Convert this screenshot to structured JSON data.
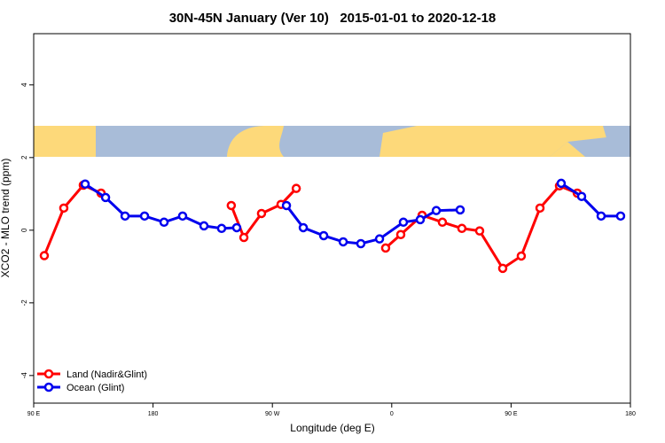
{
  "chart_data": {
    "type": "line",
    "title": "30N-45N January (Ver 10)   2015-01-01 to 2020-12-18",
    "x_label": "Longitude (deg E)",
    "y_label": "XCO2 - MLO trend (ppm)",
    "xlim": [
      90,
      540
    ],
    "xticks": [
      {
        "value": 90,
        "label": "90 E"
      },
      180,
      {
        "value": 270,
        "label": "90 W"
      },
      {
        "value": 360,
        "label": "0"
      },
      {
        "value": 450,
        "label": "90 E"
      },
      {
        "value": 540,
        "label": "180"
      }
    ],
    "ylim": [
      -4.76,
      5.41
    ],
    "yticks": [
      -4,
      -2,
      0,
      2,
      4
    ],
    "legend": "bottom-left",
    "series": [
      {
        "name": "Land (Nadir&Glint)",
        "color": "#ff0000",
        "x": [
          98,
          112.7,
          127.4,
          140.8,
          null,
          239,
          248.5,
          261.8,
          276.5,
          288,
          null,
          355.4,
          366.8,
          382.9,
          398.2,
          412.9,
          426.3,
          443.7,
          457.7,
          471.8,
          486.5,
          499.9
        ],
        "values": [
          -0.7,
          0.61,
          1.24,
          1.02,
          null,
          0.68,
          -0.2,
          0.46,
          0.71,
          1.15,
          null,
          -0.49,
          -0.12,
          0.41,
          0.22,
          0.05,
          -0.02,
          -1.05,
          -0.71,
          0.61,
          1.22,
          1.02
        ]
      },
      {
        "name": "Ocean (Glint)",
        "color": "#0000ee",
        "x": [
          128.8,
          144.2,
          158.9,
          173.6,
          188.3,
          202.3,
          218.4,
          231.7,
          243.1,
          null,
          280.6,
          293.3,
          308.7,
          323.4,
          336.7,
          350.8,
          368.8,
          381.5,
          393.6,
          411.6,
          null,
          487.8,
          503.2,
          517.9,
          532.6
        ],
        "values": [
          1.27,
          0.9,
          0.39,
          0.39,
          0.22,
          0.39,
          0.12,
          0.05,
          0.07,
          null,
          0.68,
          0.07,
          -0.15,
          -0.32,
          -0.37,
          -0.24,
          0.22,
          0.29,
          0.54,
          0.56,
          null,
          1.29,
          0.93,
          0.39,
          0.39
        ]
      }
    ]
  }
}
